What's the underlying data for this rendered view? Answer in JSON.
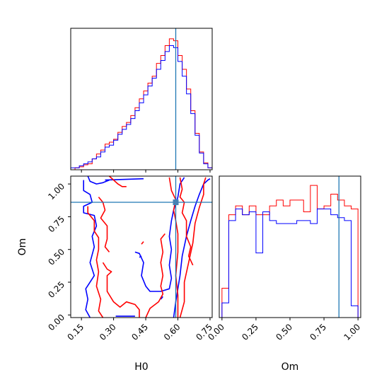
{
  "chart_data": [
    {
      "type": "histogram",
      "panel": "H0 marginal",
      "x": [
        0.1,
        0.12,
        0.14,
        0.16,
        0.18,
        0.2,
        0.22,
        0.24,
        0.26,
        0.28,
        0.3,
        0.32,
        0.34,
        0.36,
        0.38,
        0.4,
        0.42,
        0.44,
        0.46,
        0.48,
        0.5,
        0.52,
        0.54,
        0.56,
        0.58,
        0.6,
        0.62,
        0.64,
        0.66,
        0.68,
        0.7,
        0.72,
        0.74,
        0.76
      ],
      "series": [
        {
          "color": "#ff0000",
          "values": [
            0,
            2,
            3,
            5,
            6,
            11,
            16,
            20,
            26,
            28,
            31,
            38,
            44,
            48,
            55,
            63,
            72,
            80,
            88,
            95,
            108,
            116,
            126,
            133,
            131,
            116,
            102,
            82,
            60,
            37,
            18,
            7,
            2,
            0
          ]
        },
        {
          "color": "#0000ff",
          "values": [
            2,
            2,
            4,
            6,
            8,
            11,
            13,
            18,
            23,
            25,
            30,
            36,
            41,
            46,
            52,
            60,
            68,
            76,
            85,
            93,
            102,
            111,
            120,
            126,
            124,
            110,
            95,
            77,
            57,
            35,
            17,
            6,
            2,
            0
          ]
        }
      ],
      "truth": 0.59,
      "xlim": [
        0.1,
        0.76
      ]
    },
    {
      "type": "histogram",
      "panel": "Om marginal",
      "x": [
        0.0,
        0.05,
        0.1,
        0.15,
        0.2,
        0.25,
        0.3,
        0.35,
        0.4,
        0.45,
        0.5,
        0.55,
        0.6,
        0.65,
        0.7,
        0.75,
        0.8,
        0.85,
        0.9,
        0.95,
        1.0
      ],
      "series": [
        {
          "color": "#ff0000",
          "values": [
            10,
            35,
            38,
            35,
            38,
            35,
            35,
            38,
            40,
            38,
            40,
            40,
            36,
            45,
            37,
            38,
            42,
            40,
            38,
            37
          ]
        },
        {
          "color": "#0000ff",
          "values": [
            5,
            33,
            37,
            35,
            36,
            22,
            36,
            33,
            32,
            32,
            32,
            33,
            33,
            32,
            37,
            37,
            35,
            34,
            33,
            4
          ]
        }
      ],
      "truth": 0.86,
      "xlim": [
        -0.02,
        1.02
      ]
    },
    {
      "type": "contour",
      "panel": "Om vs H0",
      "xlabel": "H0",
      "ylabel": "Om",
      "xlim": [
        0.1,
        0.76
      ],
      "ylim": [
        -0.02,
        1.06
      ],
      "xticks": [
        "0.15",
        "0.30",
        "0.45",
        "0.60",
        "0.75"
      ],
      "yticks": [
        "0.00",
        "0.25",
        "0.50",
        "0.75",
        "1.00"
      ],
      "truth": {
        "x": 0.59,
        "y": 0.86
      },
      "series": [
        {
          "color": "#0000ff",
          "paths": [
            [
              [
                0.16,
                1.03
              ],
              [
                0.16,
                0.95
              ],
              [
                0.19,
                0.92
              ],
              [
                0.2,
                0.86
              ],
              [
                0.16,
                0.83
              ],
              [
                0.16,
                0.78
              ],
              [
                0.21,
                0.76
              ],
              [
                0.22,
                0.68
              ],
              [
                0.2,
                0.6
              ],
              [
                0.21,
                0.52
              ],
              [
                0.19,
                0.4
              ],
              [
                0.21,
                0.3
              ],
              [
                0.17,
                0.2
              ],
              [
                0.18,
                0.12
              ],
              [
                0.17,
                0.04
              ],
              [
                0.19,
                -0.02
              ]
            ],
            [
              [
                0.18,
                1.06
              ],
              [
                0.19,
                1.02
              ],
              [
                0.22,
                1.0
              ],
              [
                0.25,
                1.01
              ],
              [
                0.28,
                1.03
              ]
            ],
            [
              [
                0.26,
                1.03
              ],
              [
                0.44,
                1.04
              ]
            ],
            [
              [
                0.31,
                -0.01
              ],
              [
                0.4,
                -0.01
              ]
            ],
            [
              [
                0.4,
                0.48
              ],
              [
                0.42,
                0.47
              ],
              [
                0.44,
                0.4
              ],
              [
                0.43,
                0.3
              ],
              [
                0.45,
                0.22
              ],
              [
                0.47,
                0.18
              ],
              [
                0.52,
                0.18
              ],
              [
                0.56,
                0.2
              ],
              [
                0.57,
                0.28
              ],
              [
                0.56,
                0.38
              ],
              [
                0.57,
                0.5
              ],
              [
                0.56,
                0.6
              ],
              [
                0.57,
                0.72
              ],
              [
                0.58,
                0.8
              ],
              [
                0.6,
                0.9
              ],
              [
                0.61,
                1.0
              ],
              [
                0.63,
                1.05
              ]
            ],
            [
              [
                0.58,
                -0.02
              ],
              [
                0.59,
                0.1
              ],
              [
                0.61,
                0.3
              ],
              [
                0.62,
                0.45
              ],
              [
                0.64,
                0.6
              ],
              [
                0.66,
                0.72
              ],
              [
                0.68,
                0.83
              ],
              [
                0.7,
                0.92
              ],
              [
                0.72,
                1.0
              ],
              [
                0.74,
                1.03
              ],
              [
                0.75,
                1.04
              ]
            ],
            [
              [
                0.42,
                0.44
              ],
              [
                0.43,
                0.45
              ]
            ],
            [
              [
                0.52,
                0.12
              ],
              [
                0.53,
                0.14
              ]
            ]
          ]
        },
        {
          "color": "#ff0000",
          "paths": [
            [
              [
                0.18,
                0.83
              ],
              [
                0.18,
                0.78
              ],
              [
                0.21,
                0.72
              ],
              [
                0.21,
                0.64
              ],
              [
                0.23,
                0.59
              ],
              [
                0.23,
                0.5
              ],
              [
                0.22,
                0.42
              ],
              [
                0.23,
                0.33
              ],
              [
                0.22,
                0.22
              ],
              [
                0.24,
                0.12
              ],
              [
                0.23,
                0.03
              ],
              [
                0.25,
                -0.02
              ]
            ],
            [
              [
                0.23,
                0.9
              ],
              [
                0.25,
                0.86
              ],
              [
                0.26,
                0.8
              ],
              [
                0.24,
                0.74
              ],
              [
                0.27,
                0.68
              ],
              [
                0.27,
                0.58
              ],
              [
                0.26,
                0.52
              ],
              [
                0.28,
                0.48
              ]
            ],
            [
              [
                0.25,
                0.4
              ],
              [
                0.27,
                0.35
              ],
              [
                0.29,
                0.33
              ],
              [
                0.27,
                0.3
              ],
              [
                0.27,
                0.18
              ],
              [
                0.3,
                0.1
              ],
              [
                0.33,
                0.06
              ],
              [
                0.36,
                0.1
              ],
              [
                0.4,
                0.08
              ],
              [
                0.42,
                0.04
              ],
              [
                0.42,
                -0.02
              ]
            ],
            [
              [
                0.28,
                1.06
              ],
              [
                0.32,
                1.0
              ],
              [
                0.34,
                0.98
              ],
              [
                0.36,
                0.98
              ]
            ],
            [
              [
                0.45,
                -0.02
              ],
              [
                0.47,
                0.05
              ],
              [
                0.51,
                0.1
              ],
              [
                0.53,
                0.16
              ],
              [
                0.52,
                0.22
              ],
              [
                0.53,
                0.3
              ],
              [
                0.52,
                0.4
              ],
              [
                0.53,
                0.48
              ],
              [
                0.52,
                0.58
              ],
              [
                0.54,
                0.62
              ]
            ],
            [
              [
                0.56,
                1.05
              ],
              [
                0.57,
                0.95
              ],
              [
                0.59,
                0.88
              ],
              [
                0.58,
                0.8
              ],
              [
                0.59,
                0.72
              ],
              [
                0.6,
                0.62
              ],
              [
                0.6,
                0.48
              ],
              [
                0.59,
                0.3
              ],
              [
                0.6,
                0.15
              ],
              [
                0.6,
                0.02
              ],
              [
                0.6,
                -0.02
              ]
            ],
            [
              [
                0.61,
                -0.02
              ],
              [
                0.63,
                0.1
              ],
              [
                0.63,
                0.25
              ],
              [
                0.65,
                0.4
              ],
              [
                0.67,
                0.55
              ],
              [
                0.68,
                0.7
              ],
              [
                0.7,
                0.82
              ],
              [
                0.72,
                0.92
              ],
              [
                0.72,
                1.0
              ],
              [
                0.73,
                1.05
              ]
            ],
            [
              [
                0.61,
                1.05
              ],
              [
                0.62,
                0.96
              ],
              [
                0.61,
                0.9
              ],
              [
                0.63,
                0.86
              ],
              [
                0.62,
                0.78
              ],
              [
                0.64,
                0.72
              ],
              [
                0.64,
                0.6
              ],
              [
                0.66,
                0.52
              ],
              [
                0.65,
                0.45
              ],
              [
                0.67,
                0.38
              ]
            ],
            [
              [
                0.43,
                0.54
              ],
              [
                0.44,
                0.56
              ]
            ]
          ]
        }
      ]
    }
  ]
}
